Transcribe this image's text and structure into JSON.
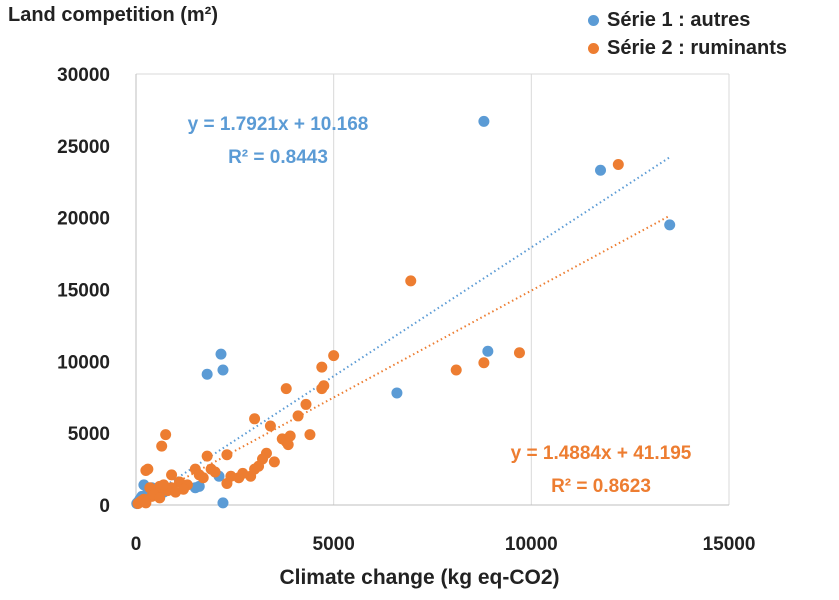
{
  "chart_data": {
    "type": "scatter",
    "title": "",
    "ylabel": "Land competition (m²)",
    "xlabel": "Climate change (kg eq-CO2)",
    "xlim": [
      0,
      15000
    ],
    "ylim": [
      0,
      30000
    ],
    "x_ticks": [
      "0",
      "5000",
      "10000",
      "15000"
    ],
    "y_ticks": [
      "0",
      "5000",
      "10000",
      "15000",
      "20000",
      "25000",
      "30000"
    ],
    "grid": "vertical",
    "legend_position": "top-right",
    "series": [
      {
        "name": "Série 1 : autres",
        "color": "#5B9BD5",
        "equation": "y = 1.7921x + 10.168",
        "r2": "R² = 0.8443",
        "trendline": {
          "slope": 1.7921,
          "intercept": 10.168,
          "x_range": [
            0,
            13500
          ]
        },
        "points": [
          [
            8800,
            26700
          ],
          [
            11750,
            23300
          ],
          [
            13500,
            19500
          ],
          [
            8900,
            10700
          ],
          [
            2150,
            10500
          ],
          [
            2200,
            9400
          ],
          [
            1800,
            9100
          ],
          [
            6600,
            7800
          ],
          [
            2100,
            2000
          ],
          [
            2200,
            150
          ],
          [
            1500,
            1200
          ],
          [
            1600,
            1300
          ],
          [
            200,
            1400
          ],
          [
            300,
            900
          ],
          [
            150,
            600
          ],
          [
            100,
            400
          ],
          [
            50,
            200
          ],
          [
            400,
            1200
          ],
          [
            700,
            900
          ],
          [
            900,
            1100
          ],
          [
            20,
            100
          ]
        ]
      },
      {
        "name": "Série 2 : ruminants",
        "color": "#ED7D31",
        "equation": "y = 1.4884x + 41.195",
        "r2": "R² = 0.8623",
        "trendline": {
          "slope": 1.4884,
          "intercept": 41.195,
          "x_range": [
            0,
            13500
          ]
        },
        "points": [
          [
            12200,
            23700
          ],
          [
            6950,
            15600
          ],
          [
            9700,
            10600
          ],
          [
            5000,
            10400
          ],
          [
            8800,
            9900
          ],
          [
            8100,
            9400
          ],
          [
            4700,
            9600
          ],
          [
            4700,
            8100
          ],
          [
            4750,
            8300
          ],
          [
            3800,
            8100
          ],
          [
            4300,
            7000
          ],
          [
            4100,
            6200
          ],
          [
            3000,
            6000
          ],
          [
            3400,
            5500
          ],
          [
            3700,
            4600
          ],
          [
            3800,
            4400
          ],
          [
            3850,
            4200
          ],
          [
            3900,
            4800
          ],
          [
            4400,
            4900
          ],
          [
            3300,
            3600
          ],
          [
            3200,
            3200
          ],
          [
            3000,
            2500
          ],
          [
            2900,
            2000
          ],
          [
            2600,
            1900
          ],
          [
            2300,
            3500
          ],
          [
            2300,
            1500
          ],
          [
            1900,
            2500
          ],
          [
            1800,
            3400
          ],
          [
            2000,
            2300
          ],
          [
            1700,
            1900
          ],
          [
            1500,
            2500
          ],
          [
            1100,
            1600
          ],
          [
            900,
            2100
          ],
          [
            900,
            1200
          ],
          [
            800,
            1000
          ],
          [
            750,
            4900
          ],
          [
            650,
            4100
          ],
          [
            600,
            1300
          ],
          [
            550,
            1000
          ],
          [
            500,
            800
          ],
          [
            400,
            600
          ],
          [
            350,
            1200
          ],
          [
            300,
            2500
          ],
          [
            250,
            2400
          ],
          [
            200,
            400
          ],
          [
            150,
            300
          ],
          [
            100,
            200
          ],
          [
            50,
            100
          ],
          [
            700,
            1400
          ],
          [
            450,
            700
          ],
          [
            1300,
            1400
          ],
          [
            2400,
            2000
          ],
          [
            2700,
            2200
          ],
          [
            3100,
            2700
          ],
          [
            3500,
            3000
          ],
          [
            1000,
            900
          ],
          [
            600,
            500
          ],
          [
            250,
            150
          ],
          [
            1200,
            1100
          ],
          [
            1600,
            2100
          ]
        ]
      }
    ]
  }
}
